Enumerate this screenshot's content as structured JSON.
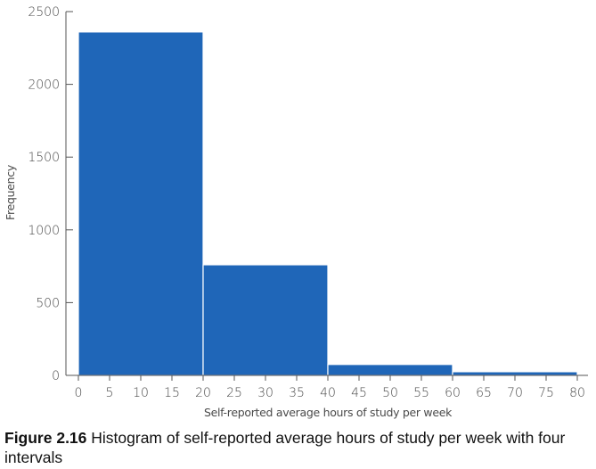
{
  "chart_data": {
    "type": "bar",
    "subtype": "histogram",
    "bins": [
      {
        "start": 0,
        "end": 20,
        "value": 2360
      },
      {
        "start": 20,
        "end": 40,
        "value": 760
      },
      {
        "start": 40,
        "end": 60,
        "value": 75
      },
      {
        "start": 60,
        "end": 80,
        "value": 25
      }
    ],
    "xlabel": "Self-reported average hours of study per week",
    "ylabel": "Frequency",
    "xlim": [
      0,
      80
    ],
    "ylim": [
      0,
      2500
    ],
    "x_ticks": [
      0,
      5,
      10,
      15,
      20,
      25,
      30,
      35,
      40,
      45,
      50,
      55,
      60,
      65,
      70,
      75,
      80
    ],
    "y_ticks": [
      0,
      500,
      1000,
      1500,
      2000,
      2500
    ],
    "bar_color": "#1f66b8",
    "grid": false
  },
  "caption": {
    "label": "Figure 2.16",
    "text": " Histogram of self-reported average hours of study per week with four intervals"
  }
}
